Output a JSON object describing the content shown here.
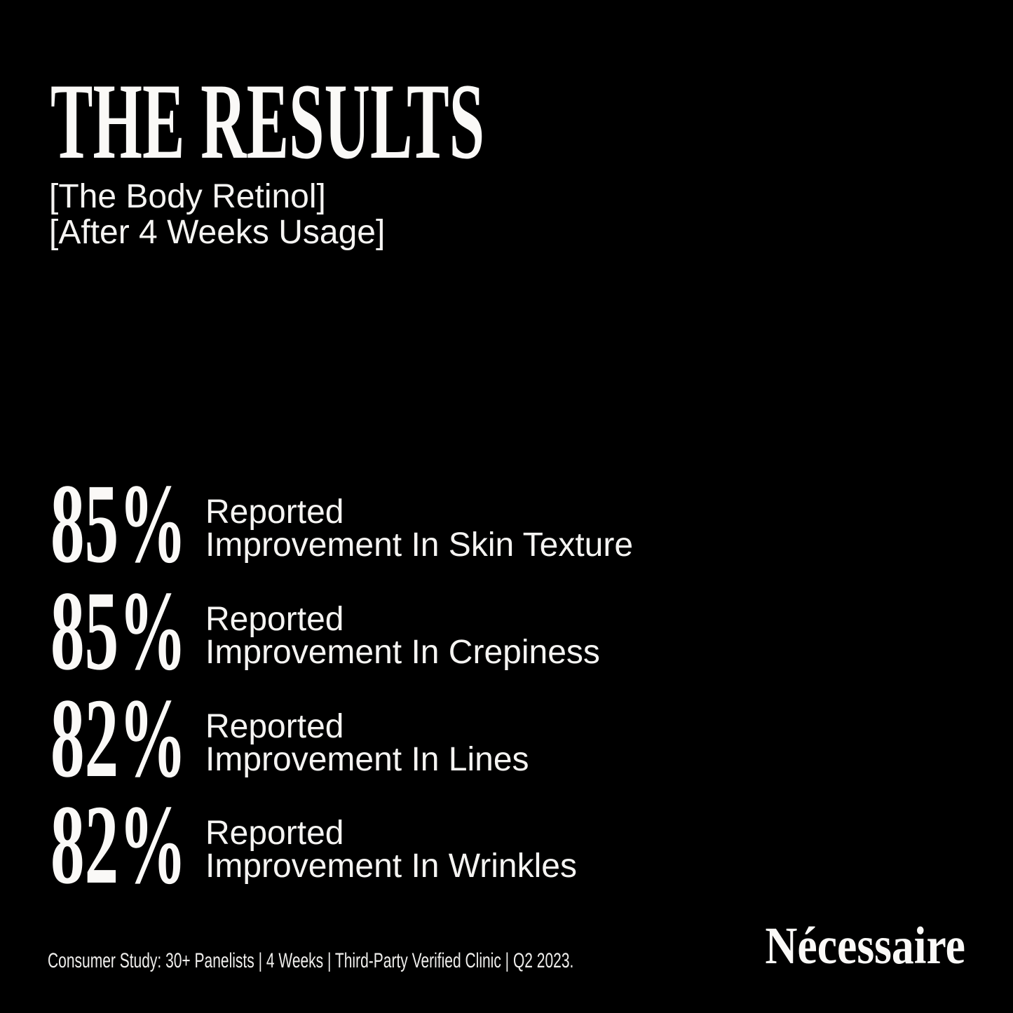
{
  "page": {
    "background": "#000000",
    "text_color": "#f8f7f5"
  },
  "header": {
    "title": "THE RESULTS",
    "subtitle_line1": "[The Body Retinol]",
    "subtitle_line2": "[After 4 Weeks Usage]"
  },
  "stats": [
    {
      "value": "85%",
      "label_line1": "Reported",
      "label_line2": "Improvement In Skin Texture"
    },
    {
      "value": "85%",
      "label_line1": "Reported",
      "label_line2": "Improvement In Crepiness"
    },
    {
      "value": "82%",
      "label_line1": "Reported",
      "label_line2": "Improvement In Lines"
    },
    {
      "value": "82%",
      "label_line1": "Reported",
      "label_line2": "Improvement In Wrinkles"
    }
  ],
  "footer": {
    "study_note": "Consumer Study: 30+ Panelists | 4 Weeks | Third-Party Verified Clinic | Q2 2023.",
    "brand": "Nécessaire"
  },
  "chart_data": {
    "type": "table",
    "title": "THE RESULTS — The Body Retinol, After 4 Weeks Usage",
    "categories": [
      "Improvement In Skin Texture",
      "Improvement In Crepiness",
      "Improvement In Lines",
      "Improvement In Wrinkles"
    ],
    "values": [
      85,
      85,
      82,
      82
    ],
    "unit": "% reported"
  }
}
